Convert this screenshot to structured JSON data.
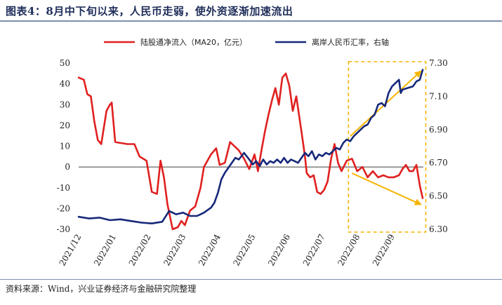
{
  "figure": {
    "title": "图表4：8月中下旬以来，人民币走弱，使外资逐渐加速流出",
    "source": "资料来源：Wind，兴业证券经济与金融研究院整理"
  },
  "colors": {
    "northbound": "#e02020",
    "fx": "#16287a",
    "arrow": "#f5b400",
    "box": "#f5b400",
    "zero_line": "#000000"
  },
  "chart_data": {
    "type": "line",
    "title": "",
    "x_ticks": [
      "2021/12",
      "2022/01",
      "2022/02",
      "2022/03",
      "2022/04",
      "2022/05",
      "2022/06",
      "2022/07",
      "2022/08",
      "2022/09"
    ],
    "x_range_months": [
      0,
      9.9
    ],
    "left_axis": {
      "ticks": [
        50,
        40,
        30,
        20,
        10,
        0,
        -10,
        -20,
        -30
      ],
      "range": [
        -30,
        50
      ]
    },
    "right_axis": {
      "ticks": [
        "7.30",
        "7.10",
        "6.90",
        "6.70",
        "6.50",
        "6.30"
      ],
      "range": [
        6.3,
        7.3
      ]
    },
    "series": [
      {
        "name": "陆股通净流入（MA20，亿元）",
        "axis": "left",
        "color": "#e02020",
        "points": [
          [
            0,
            43
          ],
          [
            0.15,
            42
          ],
          [
            0.25,
            35
          ],
          [
            0.35,
            34
          ],
          [
            0.45,
            22
          ],
          [
            0.55,
            13
          ],
          [
            0.65,
            11
          ],
          [
            0.8,
            27
          ],
          [
            0.9,
            30
          ],
          [
            0.95,
            31
          ],
          [
            1.05,
            12
          ],
          [
            1.4,
            11
          ],
          [
            1.6,
            11
          ],
          [
            1.75,
            5
          ],
          [
            1.95,
            3
          ],
          [
            2.1,
            -12
          ],
          [
            2.25,
            -13
          ],
          [
            2.35,
            3
          ],
          [
            2.45,
            -5
          ],
          [
            2.55,
            -18
          ],
          [
            2.7,
            -30
          ],
          [
            2.85,
            -29
          ],
          [
            2.95,
            -26
          ],
          [
            3.05,
            -28
          ],
          [
            3.2,
            -21
          ],
          [
            3.35,
            -19
          ],
          [
            3.5,
            -10
          ],
          [
            3.6,
            0
          ],
          [
            3.8,
            6
          ],
          [
            3.95,
            9
          ],
          [
            4.05,
            1
          ],
          [
            4.2,
            2
          ],
          [
            4.35,
            12
          ],
          [
            4.6,
            8
          ],
          [
            4.75,
            4
          ],
          [
            4.9,
            -1
          ],
          [
            5.05,
            6
          ],
          [
            5.15,
            -2
          ],
          [
            5.25,
            8
          ],
          [
            5.35,
            17
          ],
          [
            5.45,
            25
          ],
          [
            5.55,
            32
          ],
          [
            5.65,
            38
          ],
          [
            5.75,
            30
          ],
          [
            5.85,
            43
          ],
          [
            5.95,
            45
          ],
          [
            6.05,
            39
          ],
          [
            6.15,
            27
          ],
          [
            6.25,
            34
          ],
          [
            6.4,
            17
          ],
          [
            6.5,
            5
          ],
          [
            6.55,
            -3
          ],
          [
            6.65,
            -5
          ],
          [
            6.75,
            -4
          ],
          [
            6.85,
            -12
          ],
          [
            6.95,
            -13
          ],
          [
            7.05,
            -11
          ],
          [
            7.15,
            -7
          ],
          [
            7.25,
            4
          ],
          [
            7.35,
            11
          ],
          [
            7.45,
            2
          ],
          [
            7.55,
            -2
          ],
          [
            7.7,
            3
          ],
          [
            7.85,
            4
          ],
          [
            8.0,
            -2
          ],
          [
            8.15,
            0
          ],
          [
            8.3,
            -5
          ],
          [
            8.45,
            -2
          ],
          [
            8.6,
            -5
          ],
          [
            8.75,
            -4
          ],
          [
            8.9,
            -5
          ],
          [
            9.05,
            -5
          ],
          [
            9.2,
            -4
          ],
          [
            9.3,
            -1
          ],
          [
            9.4,
            1
          ],
          [
            9.5,
            -2
          ],
          [
            9.6,
            -2
          ],
          [
            9.7,
            1
          ],
          [
            9.8,
            -9
          ],
          [
            9.88,
            -15
          ]
        ]
      },
      {
        "name": "离岸人民币汇率，右轴",
        "axis": "right",
        "color": "#16287a",
        "points": [
          [
            0,
            6.375
          ],
          [
            0.3,
            6.365
          ],
          [
            0.6,
            6.37
          ],
          [
            0.9,
            6.355
          ],
          [
            1.2,
            6.36
          ],
          [
            1.5,
            6.35
          ],
          [
            1.8,
            6.34
          ],
          [
            2.1,
            6.335
          ],
          [
            2.4,
            6.345
          ],
          [
            2.6,
            6.41
          ],
          [
            2.8,
            6.39
          ],
          [
            3.0,
            6.4
          ],
          [
            3.2,
            6.38
          ],
          [
            3.4,
            6.38
          ],
          [
            3.5,
            6.39
          ],
          [
            3.6,
            6.4
          ],
          [
            3.7,
            6.415
          ],
          [
            3.8,
            6.43
          ],
          [
            3.9,
            6.46
          ],
          [
            4.0,
            6.52
          ],
          [
            4.1,
            6.6
          ],
          [
            4.2,
            6.64
          ],
          [
            4.3,
            6.67
          ],
          [
            4.4,
            6.7
          ],
          [
            4.5,
            6.73
          ],
          [
            4.6,
            6.72
          ],
          [
            4.75,
            6.76
          ],
          [
            4.9,
            6.72
          ],
          [
            5.0,
            6.69
          ],
          [
            5.1,
            6.71
          ],
          [
            5.2,
            6.68
          ],
          [
            5.3,
            6.72
          ],
          [
            5.4,
            6.69
          ],
          [
            5.5,
            6.71
          ],
          [
            5.6,
            6.7
          ],
          [
            5.7,
            6.72
          ],
          [
            5.8,
            6.7
          ],
          [
            5.9,
            6.73
          ],
          [
            6.0,
            6.7
          ],
          [
            6.1,
            6.72
          ],
          [
            6.2,
            6.71
          ],
          [
            6.3,
            6.7
          ],
          [
            6.4,
            6.73
          ],
          [
            6.5,
            6.76
          ],
          [
            6.6,
            6.74
          ],
          [
            6.7,
            6.77
          ],
          [
            6.8,
            6.72
          ],
          [
            6.9,
            6.75
          ],
          [
            7.0,
            6.74
          ],
          [
            7.1,
            6.76
          ],
          [
            7.2,
            6.75
          ],
          [
            7.3,
            6.77
          ],
          [
            7.4,
            6.79
          ],
          [
            7.5,
            6.78
          ],
          [
            7.6,
            6.82
          ],
          [
            7.7,
            6.84
          ],
          [
            7.8,
            6.83
          ],
          [
            7.9,
            6.86
          ],
          [
            8.0,
            6.88
          ],
          [
            8.1,
            6.9
          ],
          [
            8.2,
            6.92
          ],
          [
            8.3,
            6.93
          ],
          [
            8.4,
            6.97
          ],
          [
            8.5,
            6.99
          ],
          [
            8.6,
            7.05
          ],
          [
            8.7,
            7.06
          ],
          [
            8.8,
            7.04
          ],
          [
            8.9,
            7.12
          ],
          [
            9.0,
            7.16
          ],
          [
            9.1,
            7.18
          ],
          [
            9.2,
            7.2
          ],
          [
            9.25,
            7.12
          ],
          [
            9.3,
            7.14
          ],
          [
            9.45,
            7.15
          ],
          [
            9.6,
            7.16
          ],
          [
            9.7,
            7.19
          ],
          [
            9.8,
            7.2
          ],
          [
            9.88,
            7.26
          ]
        ]
      }
    ],
    "annotations": {
      "highlight_box_months": [
        7.75,
        9.97
      ],
      "arrow_up": {
        "from": [
          7.8,
          6.86
        ],
        "to": [
          9.82,
          7.25
        ],
        "axis": "right"
      },
      "arrow_down": {
        "from": [
          7.85,
          -3
        ],
        "to": [
          9.82,
          -18
        ],
        "axis": "left"
      }
    },
    "legend_position": "top-center"
  }
}
